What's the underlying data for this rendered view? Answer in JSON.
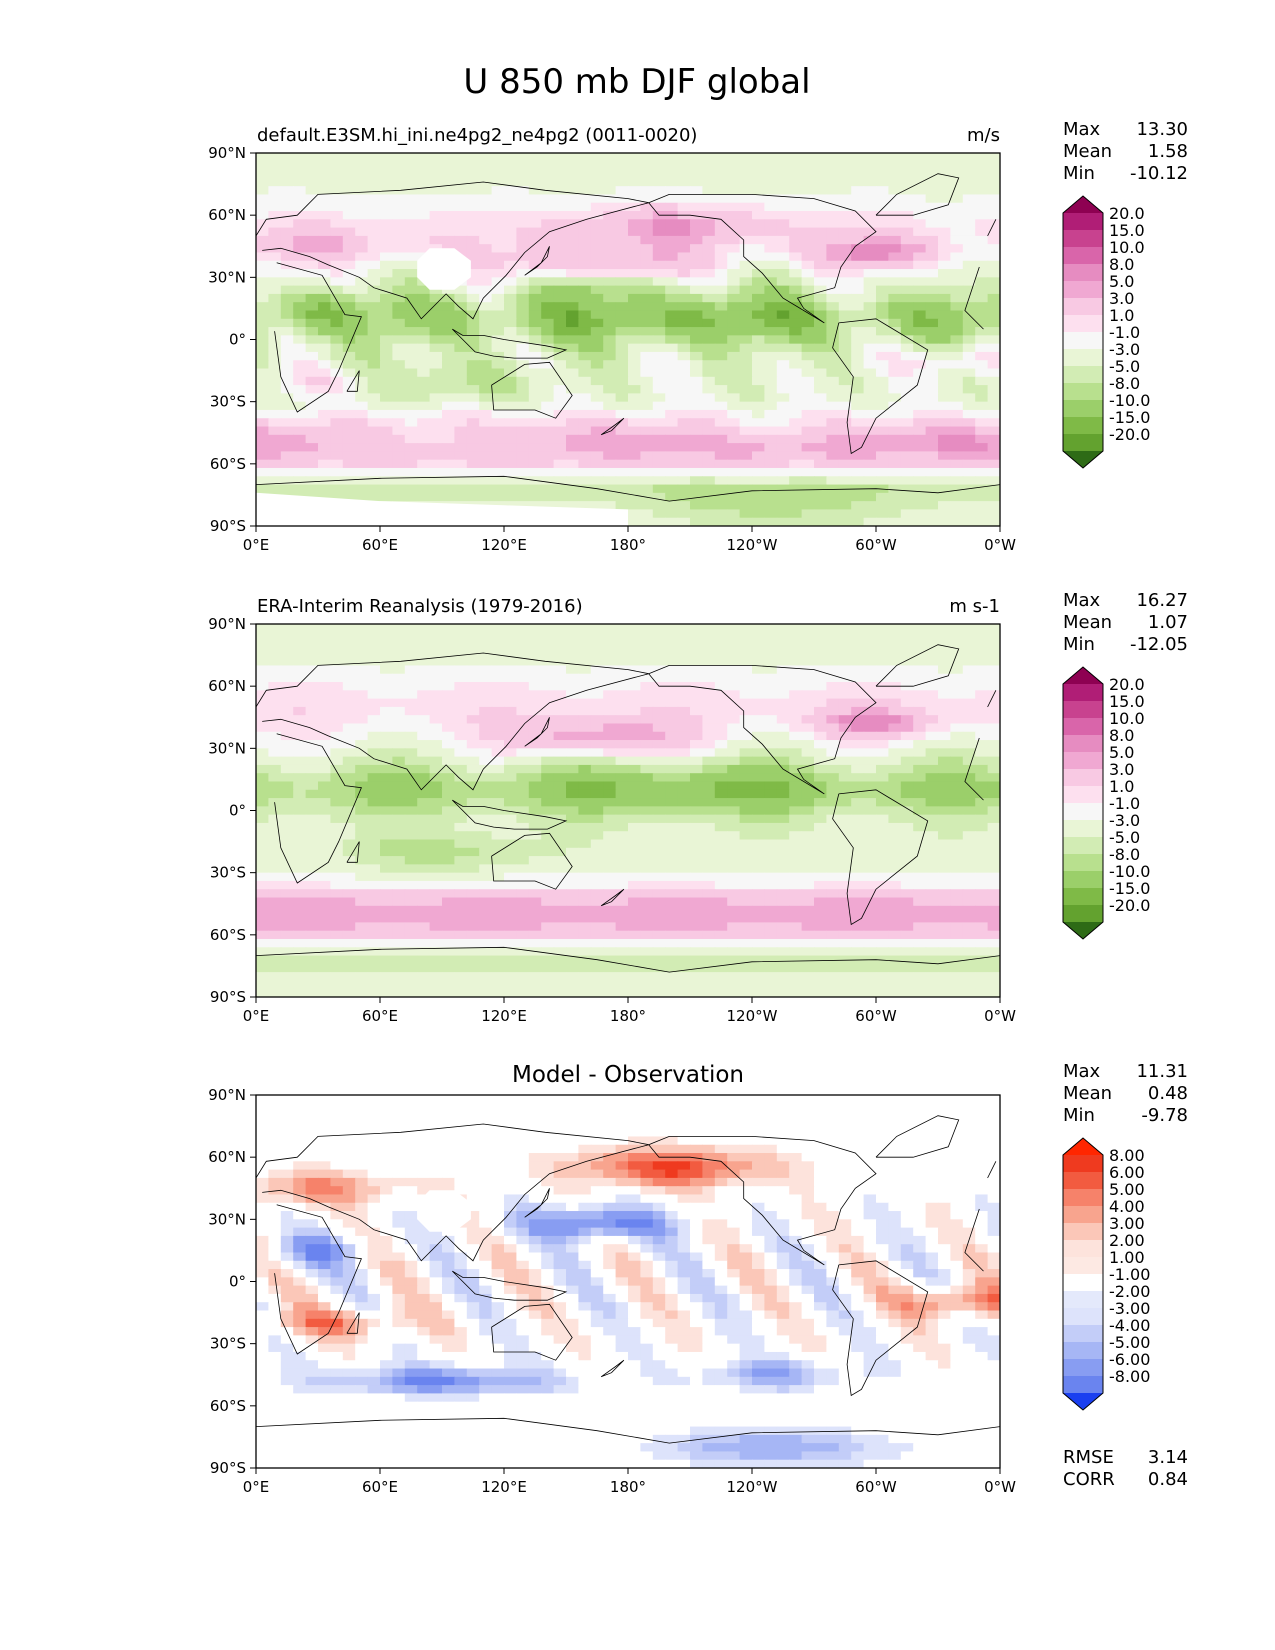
{
  "figure_title": "U 850 mb DJF global",
  "colors": {
    "pos_ramp": [
      "#fde0ef",
      "#f8c9e3",
      "#f0a8d2",
      "#e68cc1",
      "#d965aa",
      "#c8428f",
      "#b01e76",
      "#8e0152"
    ],
    "neg_ramp": [
      "#e9f5d6",
      "#d2ecb4",
      "#b8e08e",
      "#9bcf6a",
      "#7fba47",
      "#63a22f",
      "#4a8a1f",
      "#2e6b16"
    ],
    "diff_pos_ramp": [
      "#fde3dc",
      "#fbc7b8",
      "#f8a48e",
      "#f6826a",
      "#f25b40",
      "#ef3a1f",
      "#ff2600"
    ],
    "diff_neg_ramp": [
      "#dde3fb",
      "#c3cdf8",
      "#a6b6f5",
      "#889df2",
      "#6a84ef",
      "#4a69eb",
      "#1a3ff0"
    ],
    "neutral": "#f7f7f7"
  },
  "chart_data": [
    {
      "type": "heatmap",
      "title": "default.E3SM.hi_ini.ne4pg2_ne4pg2 (0011-0020)",
      "units": "m/s",
      "stats": [
        {
          "label": "Max",
          "value": "13.30"
        },
        {
          "label": "Mean",
          "value": "1.58"
        },
        {
          "label": "Min",
          "value": "-10.12"
        }
      ],
      "colorbar_levels": [
        "20.0",
        "15.0",
        "10.0",
        "8.0",
        "5.0",
        "3.0",
        "1.0",
        "-1.0",
        "-3.0",
        "-5.0",
        "-8.0",
        "-10.0",
        "-15.0",
        "-20.0"
      ],
      "colorbar": "prgn",
      "field": "model",
      "missing_region": true,
      "xlabel": "",
      "ylabel": "",
      "xlim": [
        0,
        360
      ],
      "ylim": [
        -90,
        90
      ],
      "x_ticks": [
        "0°E",
        "60°E",
        "120°E",
        "180°",
        "120°W",
        "60°W",
        "0°W"
      ],
      "y_ticks": [
        "90°N",
        "60°N",
        "30°N",
        "0°",
        "30°S",
        "60°S",
        "90°S"
      ]
    },
    {
      "type": "heatmap",
      "title": "ERA-Interim Reanalysis (1979-2016)",
      "units": "m s-1",
      "stats": [
        {
          "label": "Max",
          "value": "16.27"
        },
        {
          "label": "Mean",
          "value": "1.07"
        },
        {
          "label": "Min",
          "value": "-12.05"
        }
      ],
      "colorbar_levels": [
        "20.0",
        "15.0",
        "10.0",
        "8.0",
        "5.0",
        "3.0",
        "1.0",
        "-1.0",
        "-3.0",
        "-5.0",
        "-8.0",
        "-10.0",
        "-15.0",
        "-20.0"
      ],
      "colorbar": "prgn",
      "field": "obs",
      "missing_region": false,
      "xlabel": "",
      "ylabel": "",
      "xlim": [
        0,
        360
      ],
      "ylim": [
        -90,
        90
      ],
      "x_ticks": [
        "0°E",
        "60°E",
        "120°E",
        "180°",
        "120°W",
        "60°W",
        "0°W"
      ],
      "y_ticks": [
        "90°N",
        "60°N",
        "30°N",
        "0°",
        "30°S",
        "60°S",
        "90°S"
      ]
    },
    {
      "type": "heatmap",
      "title": "Model - Observation",
      "units": "",
      "stats": [
        {
          "label": "Max",
          "value": "11.31"
        },
        {
          "label": "Mean",
          "value": "0.48"
        },
        {
          "label": "Min",
          "value": "-9.78"
        }
      ],
      "colorbar_levels": [
        "8.00",
        "6.00",
        "5.00",
        "4.00",
        "3.00",
        "2.00",
        "1.00",
        "-1.00",
        "-2.00",
        "-3.00",
        "-4.00",
        "-5.00",
        "-6.00",
        "-8.00"
      ],
      "colorbar": "diff",
      "field": "diff",
      "missing_region": true,
      "metrics": [
        {
          "label": "RMSE",
          "value": "3.14"
        },
        {
          "label": "CORR",
          "value": "0.84"
        }
      ],
      "xlabel": "",
      "ylabel": "",
      "xlim": [
        0,
        360
      ],
      "ylim": [
        -90,
        90
      ],
      "x_ticks": [
        "0°E",
        "60°E",
        "120°E",
        "180°",
        "120°W",
        "60°W",
        "0°W"
      ],
      "y_ticks": [
        "90°N",
        "60°N",
        "30°N",
        "0°",
        "30°S",
        "60°S",
        "90°S"
      ]
    }
  ]
}
